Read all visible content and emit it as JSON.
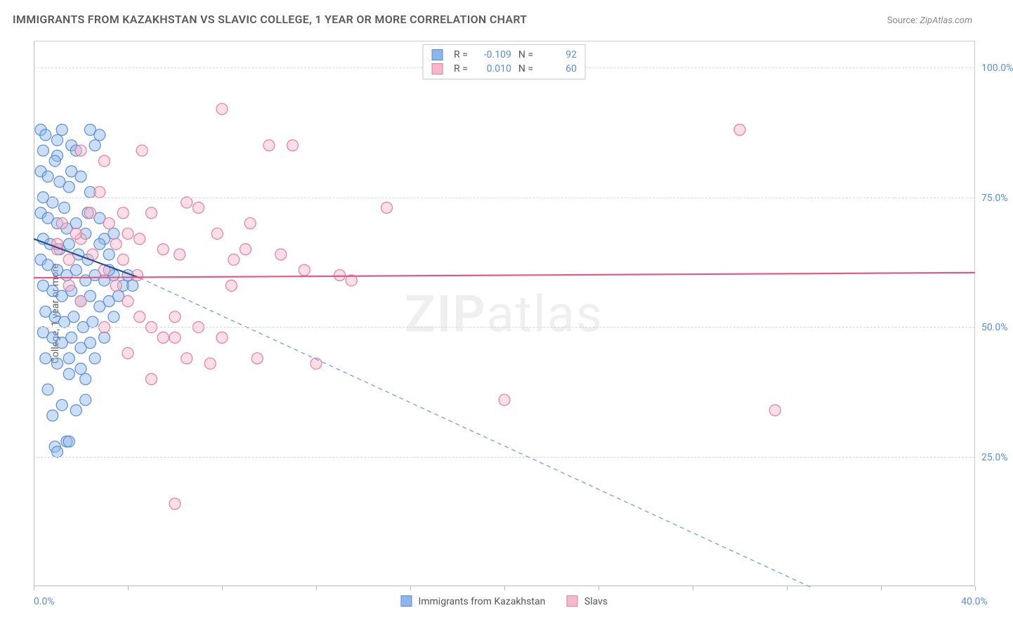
{
  "title": "IMMIGRANTS FROM KAZAKHSTAN VS SLAVIC COLLEGE, 1 YEAR OR MORE CORRELATION CHART",
  "source": {
    "label": "Source:",
    "value": "ZipAtlas.com"
  },
  "ylabel": "College, 1 year or more",
  "watermark": {
    "bold": "ZIP",
    "rest": "atlas"
  },
  "chart": {
    "type": "scatter",
    "xlim": [
      0,
      40
    ],
    "ylim": [
      0,
      105
    ],
    "x_ticks": [
      0,
      4,
      8,
      12,
      16,
      20,
      24,
      28,
      32,
      36,
      40
    ],
    "x_tick_labels": {
      "first": "0.0%",
      "last": "40.0%"
    },
    "y_gridlines": [
      25,
      50,
      75,
      100
    ],
    "y_grid_labels": [
      "25.0%",
      "50.0%",
      "75.0%",
      "100.0%"
    ],
    "background_color": "#ffffff",
    "grid_color": "#d8d8d8",
    "axis_color": "#bbbbbb",
    "marker_radius": 8,
    "marker_opacity": 0.45,
    "marker_stroke_width": 1.2,
    "series": [
      {
        "id": "kazakhstan",
        "label": "Immigrants from Kazakhstan",
        "fill_color": "#8fb6e8",
        "stroke_color": "#5a8dd6",
        "R": "-0.109",
        "N": "92",
        "trend": {
          "solid": {
            "x1": 0,
            "y1": 67,
            "x2": 4.5,
            "y2": 59.5,
            "color": "#2d4f8f",
            "width": 2.2
          },
          "dashed": {
            "x1": 4.5,
            "y1": 59.5,
            "x2": 33,
            "y2": 0,
            "color": "#7fa5d8",
            "width": 1.4,
            "dash": "6 5"
          }
        },
        "points": [
          [
            0.3,
            88
          ],
          [
            0.5,
            87
          ],
          [
            1.2,
            88
          ],
          [
            2.4,
            88
          ],
          [
            2.8,
            87
          ],
          [
            1.6,
            85
          ],
          [
            0.4,
            84
          ],
          [
            1.0,
            83
          ],
          [
            2.6,
            85
          ],
          [
            0.3,
            80
          ],
          [
            0.6,
            79
          ],
          [
            1.1,
            78
          ],
          [
            1.5,
            77
          ],
          [
            2.0,
            79
          ],
          [
            2.4,
            76
          ],
          [
            0.4,
            75
          ],
          [
            0.8,
            74
          ],
          [
            1.3,
            73
          ],
          [
            0.3,
            72
          ],
          [
            0.6,
            71
          ],
          [
            1.0,
            70
          ],
          [
            1.4,
            69
          ],
          [
            1.8,
            70
          ],
          [
            2.2,
            68
          ],
          [
            0.4,
            67
          ],
          [
            0.7,
            66
          ],
          [
            1.1,
            65
          ],
          [
            1.5,
            66
          ],
          [
            1.9,
            64
          ],
          [
            2.3,
            63
          ],
          [
            0.3,
            63
          ],
          [
            0.6,
            62
          ],
          [
            1.0,
            61
          ],
          [
            1.4,
            60
          ],
          [
            1.8,
            61
          ],
          [
            2.2,
            59
          ],
          [
            2.6,
            60
          ],
          [
            3.0,
            59
          ],
          [
            3.4,
            60
          ],
          [
            0.4,
            58
          ],
          [
            0.8,
            57
          ],
          [
            1.2,
            56
          ],
          [
            1.6,
            57
          ],
          [
            2.0,
            55
          ],
          [
            2.4,
            56
          ],
          [
            2.8,
            54
          ],
          [
            3.2,
            55
          ],
          [
            0.5,
            53
          ],
          [
            0.9,
            52
          ],
          [
            1.3,
            51
          ],
          [
            1.7,
            52
          ],
          [
            2.1,
            50
          ],
          [
            2.5,
            51
          ],
          [
            0.4,
            49
          ],
          [
            0.8,
            48
          ],
          [
            1.2,
            47
          ],
          [
            1.6,
            48
          ],
          [
            2.0,
            46
          ],
          [
            2.4,
            47
          ],
          [
            0.5,
            44
          ],
          [
            1.0,
            43
          ],
          [
            1.5,
            44
          ],
          [
            2.0,
            42
          ],
          [
            1.5,
            41
          ],
          [
            2.2,
            40
          ],
          [
            0.6,
            38
          ],
          [
            1.2,
            35
          ],
          [
            0.8,
            33
          ],
          [
            1.4,
            28
          ],
          [
            0.9,
            27
          ],
          [
            1.5,
            28
          ],
          [
            1.0,
            26
          ],
          [
            3.8,
            58
          ],
          [
            3.2,
            64
          ],
          [
            2.8,
            71
          ],
          [
            3.0,
            67
          ],
          [
            3.4,
            52
          ],
          [
            3.0,
            48
          ],
          [
            2.6,
            44
          ],
          [
            2.2,
            36
          ],
          [
            1.8,
            34
          ],
          [
            1.0,
            86
          ],
          [
            1.8,
            84
          ],
          [
            0.9,
            82
          ],
          [
            1.6,
            80
          ],
          [
            2.3,
            72
          ],
          [
            2.8,
            66
          ],
          [
            3.2,
            61
          ],
          [
            3.6,
            56
          ],
          [
            3.4,
            68
          ],
          [
            4.0,
            60
          ],
          [
            4.2,
            58
          ]
        ]
      },
      {
        "id": "slavs",
        "label": "Slavs",
        "fill_color": "#f4b9c9",
        "stroke_color": "#e87ba0",
        "R": "0.010",
        "N": "60",
        "trend": {
          "solid": {
            "x1": 0,
            "y1": 59.5,
            "x2": 40,
            "y2": 60.5,
            "color": "#e05a8a",
            "width": 2.2
          }
        },
        "points": [
          [
            1.0,
            65
          ],
          [
            1.5,
            63
          ],
          [
            2.0,
            67
          ],
          [
            2.5,
            64
          ],
          [
            3.0,
            61
          ],
          [
            3.5,
            66
          ],
          [
            1.2,
            70
          ],
          [
            1.8,
            68
          ],
          [
            2.4,
            72
          ],
          [
            3.2,
            70
          ],
          [
            4.0,
            68
          ],
          [
            2.0,
            84
          ],
          [
            3.8,
            72
          ],
          [
            4.5,
            67
          ],
          [
            5.0,
            72
          ],
          [
            5.5,
            48
          ],
          [
            6.0,
            52
          ],
          [
            6.2,
            64
          ],
          [
            6.5,
            74
          ],
          [
            7.0,
            73
          ],
          [
            3.5,
            58
          ],
          [
            4.0,
            55
          ],
          [
            4.5,
            52
          ],
          [
            5.0,
            50
          ],
          [
            5.5,
            65
          ],
          [
            6.0,
            48
          ],
          [
            6.5,
            44
          ],
          [
            7.5,
            43
          ],
          [
            8.0,
            92
          ],
          [
            8.5,
            63
          ],
          [
            9.0,
            65
          ],
          [
            9.5,
            44
          ],
          [
            10.0,
            85
          ],
          [
            10.5,
            64
          ],
          [
            11.0,
            85
          ],
          [
            11.5,
            61
          ],
          [
            12.0,
            43
          ],
          [
            13.0,
            60
          ],
          [
            7.0,
            50
          ],
          [
            8.0,
            48
          ],
          [
            5.0,
            40
          ],
          [
            4.0,
            45
          ],
          [
            3.0,
            50
          ],
          [
            2.0,
            55
          ],
          [
            1.5,
            58
          ],
          [
            6.0,
            16
          ],
          [
            15.0,
            73
          ],
          [
            13.5,
            59
          ],
          [
            20.0,
            36
          ],
          [
            30.0,
            88
          ],
          [
            31.5,
            34
          ],
          [
            3.0,
            82
          ],
          [
            4.6,
            84
          ],
          [
            7.8,
            68
          ],
          [
            8.4,
            58
          ],
          [
            9.2,
            70
          ],
          [
            2.8,
            76
          ],
          [
            3.8,
            63
          ],
          [
            4.4,
            60
          ],
          [
            1.0,
            66
          ]
        ]
      }
    ]
  },
  "colors": {
    "title_text": "#5a5a5a",
    "axis_label_text": "#5a8dd6",
    "legend_border": "#c9c9c9"
  },
  "fonts": {
    "title_size": 16,
    "label_size": 14,
    "axis_size": 14
  }
}
